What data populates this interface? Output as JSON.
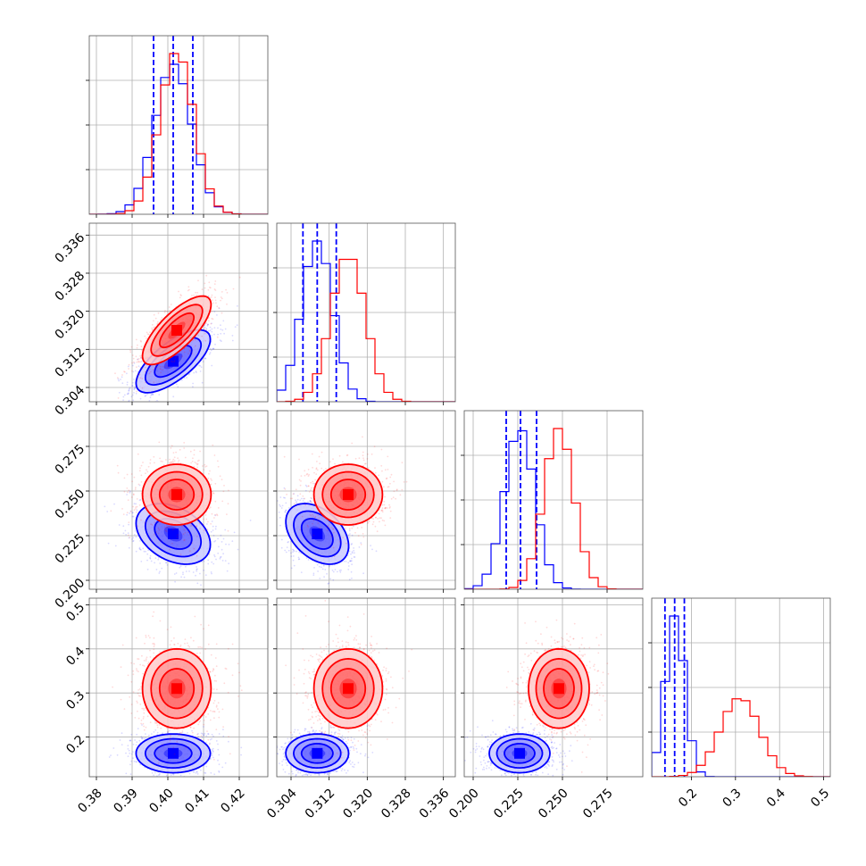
{
  "colors": {
    "blue": "#0000ff",
    "red": "#ff0000",
    "grid": "#b0b0b0",
    "frame": "#000000"
  },
  "chart_data": {
    "type": "corner",
    "grid": true,
    "parameters": [
      {
        "range": [
          0.378,
          0.428
        ],
        "ticks": [
          "0.38",
          "0.39",
          "0.40",
          "0.41",
          "0.42"
        ],
        "tick_values": [
          0.38,
          0.39,
          0.4,
          0.41,
          0.42
        ]
      },
      {
        "range": [
          0.301,
          0.3385
        ],
        "ticks": [
          "0.304",
          "0.312",
          "0.320",
          "0.328",
          "0.336"
        ],
        "tick_values": [
          0.304,
          0.312,
          0.32,
          0.328,
          0.336
        ]
      },
      {
        "range": [
          0.195,
          0.295
        ],
        "ticks": [
          "0.200",
          "0.225",
          "0.250",
          "0.275"
        ],
        "tick_values": [
          0.2,
          0.225,
          0.25,
          0.275
        ]
      },
      {
        "range": [
          0.11,
          0.515
        ],
        "ticks": [
          "0.2",
          "0.3",
          "0.4",
          "0.5"
        ],
        "tick_values": [
          0.2,
          0.3,
          0.4,
          0.5
        ]
      }
    ],
    "series": [
      {
        "color": "#0000ff",
        "means": [
          0.4015,
          0.3095,
          0.226,
          0.163
        ],
        "sigmas": [
          0.0052,
          0.0033,
          0.0085,
          0.022
        ],
        "quantiles": [
          [
            0.396,
            0.4015,
            0.407
          ],
          [
            0.3065,
            0.3095,
            0.3135
          ],
          [
            0.2185,
            0.2265,
            0.2355
          ],
          [
            0.14,
            0.162,
            0.184
          ]
        ],
        "correlations": {
          "1-0": 0.7,
          "2-0": -0.35,
          "2-1": -0.4,
          "3-0": 0.0,
          "3-1": 0.0,
          "3-2": 0.0
        }
      },
      {
        "color": "#ff0000",
        "means": [
          0.4025,
          0.316,
          0.248,
          0.31
        ],
        "sigmas": [
          0.0048,
          0.0036,
          0.0085,
          0.045
        ],
        "quantiles": [],
        "correlations": {
          "1-0": 0.75,
          "2-0": 0.0,
          "2-1": 0.0,
          "3-0": 0.0,
          "3-1": 0.0,
          "3-2": 0.0
        }
      }
    ]
  }
}
